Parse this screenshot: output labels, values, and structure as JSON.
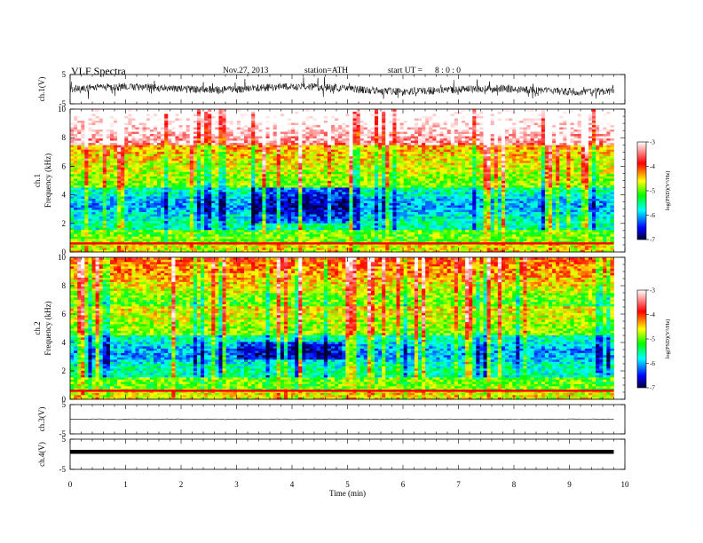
{
  "header": {
    "title": "VLF  Spectra",
    "date": "Nov.27, 2013",
    "station": "station=ATH",
    "start_label": "start  UT  =",
    "start_value": "8 : 0 : 0"
  },
  "chart_data": [
    {
      "type": "line",
      "panel": "ch1-waveform",
      "ylabel": "ch.1(V)",
      "ylim": [
        -5,
        5
      ],
      "yticks": [
        "5",
        "-5"
      ],
      "x_range_min": [
        0,
        9.8
      ]
    },
    {
      "type": "heatmap",
      "panel": "ch1-spectrogram",
      "ylabel_channel": "ch.1",
      "ylabel": "Frequency  (kHz)",
      "ylim": [
        0,
        10
      ],
      "yticks": [
        "0",
        "2",
        "4",
        "6",
        "8",
        "10"
      ],
      "x_range_min": [
        0,
        9.8
      ],
      "colorbar": {
        "label": "log(PSD)(V²/Hz)",
        "range": [
          -7,
          -3
        ],
        "ticks": [
          "-3",
          "-4",
          "-5",
          "-6",
          "-7"
        ]
      }
    },
    {
      "type": "heatmap",
      "panel": "ch2-spectrogram",
      "ylabel_channel": "ch.2",
      "ylabel": "Frequency  (kHz)",
      "ylim": [
        0,
        10
      ],
      "yticks": [
        "0",
        "2",
        "4",
        "6",
        "8",
        "10"
      ],
      "x_range_min": [
        0,
        9.8
      ],
      "colorbar": {
        "label": "log(PSD)(V²/Hz)",
        "range": [
          -7,
          -3
        ],
        "ticks": [
          "-3",
          "-4",
          "-5",
          "-6",
          "-7"
        ]
      }
    },
    {
      "type": "line",
      "panel": "ch3-waveform",
      "ylabel": "ch.3(V)",
      "ylim": [
        -5,
        5
      ],
      "yticks": [
        "5",
        "-5"
      ],
      "x_range_min": [
        0,
        9.8
      ]
    },
    {
      "type": "line",
      "panel": "ch4-waveform",
      "ylabel": "ch.4(V)",
      "ylim": [
        -5,
        5
      ],
      "yticks": [
        "5",
        "-5"
      ],
      "x_range_min": [
        0,
        9.8
      ]
    }
  ],
  "x_axis": {
    "label": "Time  (min)",
    "range": [
      0,
      10
    ],
    "ticks": [
      "0",
      "1",
      "2",
      "3",
      "4",
      "5",
      "6",
      "7",
      "8",
      "9",
      "10"
    ]
  },
  "colors": {
    "low": "#000033",
    "blue": "#0000ff",
    "cyan": "#00ffff",
    "green": "#00ff00",
    "yellow": "#ffff00",
    "red": "#ff0000",
    "high": "#ffffff"
  }
}
